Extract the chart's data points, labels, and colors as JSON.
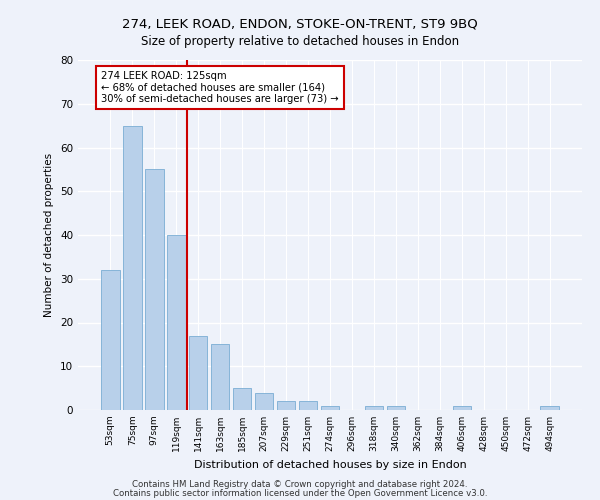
{
  "title1": "274, LEEK ROAD, ENDON, STOKE-ON-TRENT, ST9 9BQ",
  "title2": "Size of property relative to detached houses in Endon",
  "xlabel": "Distribution of detached houses by size in Endon",
  "ylabel": "Number of detached properties",
  "categories": [
    "53sqm",
    "75sqm",
    "97sqm",
    "119sqm",
    "141sqm",
    "163sqm",
    "185sqm",
    "207sqm",
    "229sqm",
    "251sqm",
    "274sqm",
    "296sqm",
    "318sqm",
    "340sqm",
    "362sqm",
    "384sqm",
    "406sqm",
    "428sqm",
    "450sqm",
    "472sqm",
    "494sqm"
  ],
  "values": [
    32,
    65,
    55,
    40,
    17,
    15,
    5,
    4,
    2,
    2,
    1,
    0,
    1,
    1,
    0,
    0,
    1,
    0,
    0,
    0,
    1
  ],
  "bar_color": "#b8d0ea",
  "bar_edge_color": "#7aadd4",
  "vline_x": 3.5,
  "vline_color": "#cc0000",
  "annotation_text": "274 LEEK ROAD: 125sqm\n← 68% of detached houses are smaller (164)\n30% of semi-detached houses are larger (73) →",
  "annotation_box_color": "#ffffff",
  "annotation_box_edge": "#cc0000",
  "ylim": [
    0,
    80
  ],
  "yticks": [
    0,
    10,
    20,
    30,
    40,
    50,
    60,
    70,
    80
  ],
  "footer1": "Contains HM Land Registry data © Crown copyright and database right 2024.",
  "footer2": "Contains public sector information licensed under the Open Government Licence v3.0.",
  "bg_color": "#eef2fa",
  "grid_color": "#ffffff"
}
